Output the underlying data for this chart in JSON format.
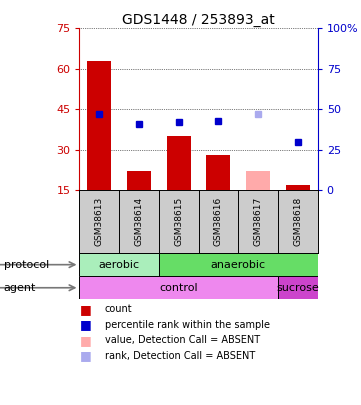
{
  "title": "GDS1448 / 253893_at",
  "samples": [
    "GSM38613",
    "GSM38614",
    "GSM38615",
    "GSM38616",
    "GSM38617",
    "GSM38618"
  ],
  "bar_values": [
    63,
    22,
    35,
    28,
    22,
    17
  ],
  "bar_colors": [
    "#cc0000",
    "#cc0000",
    "#cc0000",
    "#cc0000",
    "#ffaaaa",
    "#cc0000"
  ],
  "rank_values": [
    47,
    41,
    42,
    43,
    47,
    30
  ],
  "rank_colors": [
    "#0000cc",
    "#0000cc",
    "#0000cc",
    "#0000cc",
    "#aaaaee",
    "#0000cc"
  ],
  "ylim_left": [
    15,
    75
  ],
  "ylim_right": [
    0,
    100
  ],
  "yticks_left": [
    15,
    30,
    45,
    60,
    75
  ],
  "yticks_right": [
    0,
    25,
    50,
    75,
    100
  ],
  "ytick_labels_left": [
    "15",
    "30",
    "45",
    "60",
    "75"
  ],
  "ytick_labels_right": [
    "0",
    "25",
    "50",
    "75",
    "100%"
  ],
  "protocol_labels": [
    [
      "aerobic",
      0,
      2
    ],
    [
      "anaerobic",
      2,
      6
    ]
  ],
  "protocol_colors": [
    "#aaeebb",
    "#66dd66"
  ],
  "agent_labels": [
    [
      "control",
      0,
      5
    ],
    [
      "sucrose",
      5,
      6
    ]
  ],
  "agent_colors": [
    "#ee88ee",
    "#cc44cc"
  ],
  "left_color": "#cc0000",
  "right_color": "#0000cc",
  "grid_color": "#888888",
  "bg_color": "#ffffff",
  "sample_bg": "#cccccc",
  "legend_items": [
    {
      "label": "count",
      "color": "#cc0000"
    },
    {
      "label": "percentile rank within the sample",
      "color": "#0000cc"
    },
    {
      "label": "value, Detection Call = ABSENT",
      "color": "#ffaaaa"
    },
    {
      "label": "rank, Detection Call = ABSENT",
      "color": "#aaaaee"
    }
  ]
}
